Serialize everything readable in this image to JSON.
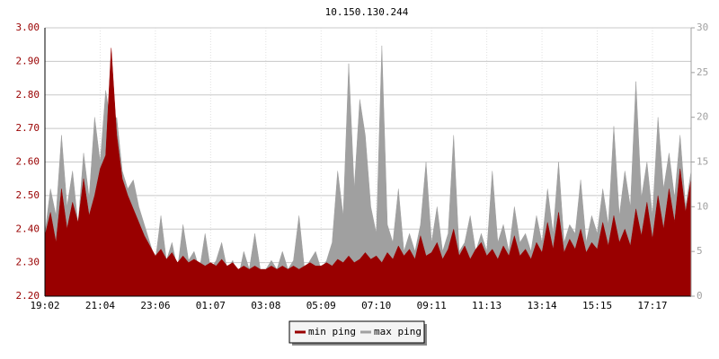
{
  "chart_data": {
    "type": "area",
    "title": "10.150.130.244",
    "categories": [
      "19:02",
      null,
      null,
      null,
      null,
      null,
      null,
      null,
      null,
      null,
      "21:04",
      null,
      null,
      null,
      null,
      null,
      null,
      null,
      null,
      null,
      "23:06",
      null,
      null,
      null,
      null,
      null,
      null,
      null,
      null,
      null,
      "01:07",
      null,
      null,
      null,
      null,
      null,
      null,
      null,
      null,
      null,
      "03:08",
      null,
      null,
      null,
      null,
      null,
      null,
      null,
      null,
      null,
      "05:09",
      null,
      null,
      null,
      null,
      null,
      null,
      null,
      null,
      null,
      "07:10",
      null,
      null,
      null,
      null,
      null,
      null,
      null,
      null,
      null,
      "09:11",
      null,
      null,
      null,
      null,
      null,
      null,
      null,
      null,
      null,
      "11:13",
      null,
      null,
      null,
      null,
      null,
      null,
      null,
      null,
      null,
      "13:14",
      null,
      null,
      null,
      null,
      null,
      null,
      null,
      null,
      null,
      "15:15",
      null,
      null,
      null,
      null,
      null,
      null,
      null,
      null,
      null,
      "17:17",
      null,
      null,
      null,
      null,
      null,
      null,
      null
    ],
    "series": [
      {
        "name": "min ping",
        "color": "#990000",
        "axis": "y",
        "values": [
          2.38,
          2.45,
          2.36,
          2.52,
          2.4,
          2.48,
          2.42,
          2.55,
          2.44,
          2.5,
          2.58,
          2.62,
          2.94,
          2.68,
          2.55,
          2.5,
          2.46,
          2.42,
          2.38,
          2.35,
          2.32,
          2.34,
          2.31,
          2.33,
          2.3,
          2.32,
          2.3,
          2.31,
          2.3,
          2.29,
          2.3,
          2.29,
          2.31,
          2.29,
          2.3,
          2.28,
          2.29,
          2.28,
          2.29,
          2.28,
          2.28,
          2.29,
          2.28,
          2.29,
          2.28,
          2.29,
          2.28,
          2.29,
          2.3,
          2.29,
          2.29,
          2.3,
          2.29,
          2.31,
          2.3,
          2.32,
          2.3,
          2.31,
          2.33,
          2.31,
          2.32,
          2.3,
          2.33,
          2.31,
          2.35,
          2.32,
          2.34,
          2.31,
          2.38,
          2.32,
          2.33,
          2.36,
          2.31,
          2.34,
          2.4,
          2.32,
          2.35,
          2.31,
          2.34,
          2.36,
          2.32,
          2.34,
          2.31,
          2.35,
          2.32,
          2.38,
          2.32,
          2.34,
          2.31,
          2.36,
          2.33,
          2.42,
          2.34,
          2.45,
          2.33,
          2.37,
          2.34,
          2.4,
          2.33,
          2.36,
          2.34,
          2.42,
          2.35,
          2.44,
          2.36,
          2.4,
          2.35,
          2.46,
          2.38,
          2.48,
          2.37,
          2.5,
          2.4,
          2.52,
          2.42,
          2.58,
          2.45,
          2.55
        ]
      },
      {
        "name": "max ping",
        "color": "#a0a0a0",
        "axis": "y2",
        "values": [
          7,
          12,
          9,
          18,
          10,
          14,
          8,
          16,
          11,
          20,
          15,
          23,
          19,
          20,
          14,
          12,
          13,
          10,
          8,
          6,
          4,
          9,
          4,
          6,
          3,
          8,
          4,
          5,
          3,
          7,
          3,
          4,
          6,
          3,
          4,
          2,
          5,
          3,
          7,
          3,
          3,
          4,
          3,
          5,
          3,
          4,
          9,
          3,
          4,
          5,
          3,
          4,
          6,
          14,
          9,
          26,
          12,
          22,
          18,
          10,
          7,
          28,
          8,
          6,
          12,
          5,
          7,
          5,
          8,
          15,
          6,
          10,
          5,
          7,
          18,
          5,
          6,
          9,
          5,
          7,
          5,
          14,
          6,
          8,
          5,
          10,
          6,
          7,
          5,
          9,
          6,
          12,
          7,
          15,
          6,
          8,
          7,
          13,
          6,
          9,
          7,
          12,
          8,
          19,
          9,
          14,
          10,
          24,
          11,
          15,
          9,
          20,
          12,
          16,
          11,
          18,
          10,
          14
        ]
      }
    ],
    "ylim": [
      2.2,
      3.0
    ],
    "yticks": [
      {
        "value": 2.2,
        "label": "2.20"
      },
      {
        "value": 2.3,
        "label": "2.30"
      },
      {
        "value": 2.4,
        "label": "2.40"
      },
      {
        "value": 2.5,
        "label": "2.50"
      },
      {
        "value": 2.6,
        "label": "2.60"
      },
      {
        "value": 2.7,
        "label": "2.70"
      },
      {
        "value": 2.8,
        "label": "2.80"
      },
      {
        "value": 2.9,
        "label": "2.90"
      },
      {
        "value": 3.0,
        "label": "3.00"
      }
    ],
    "y2lim": [
      0,
      30
    ],
    "y2ticks": [
      0,
      5,
      10,
      15,
      20,
      25,
      30
    ],
    "grid": true,
    "legend": "bottom"
  }
}
